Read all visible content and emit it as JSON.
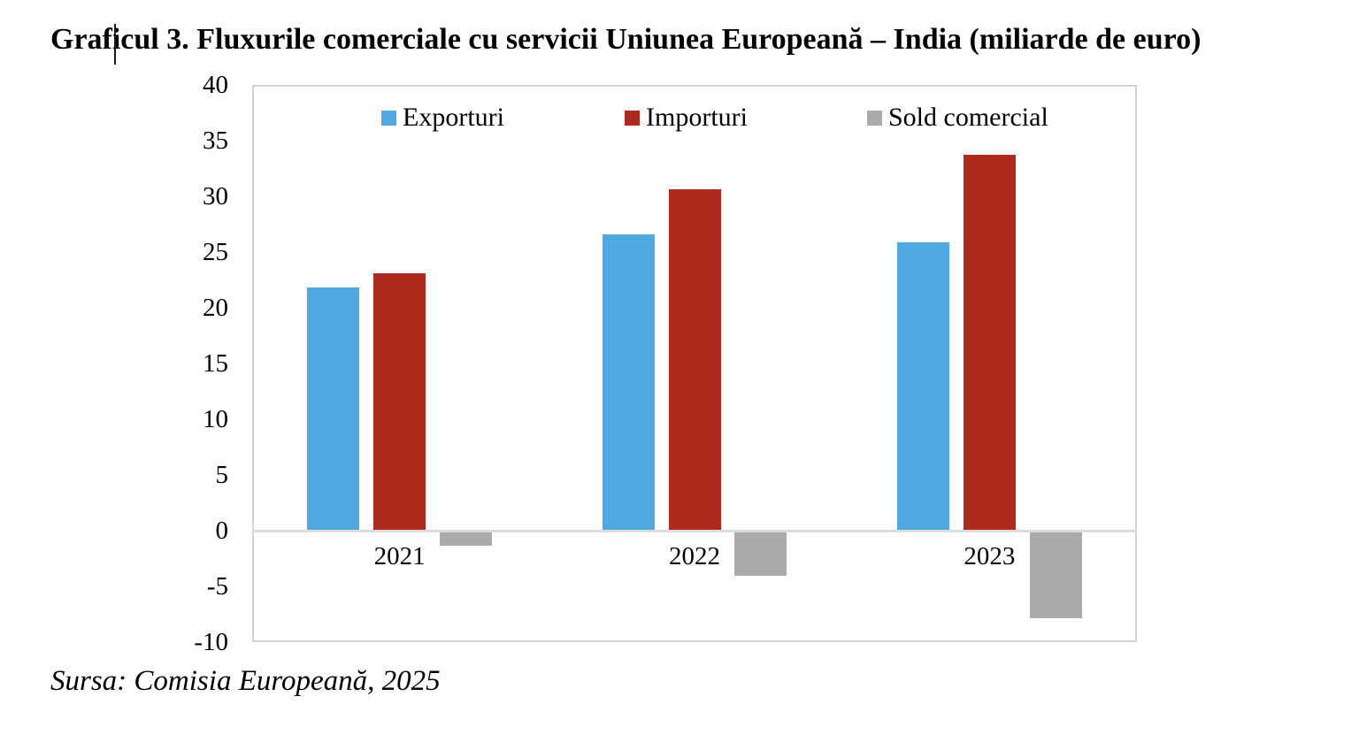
{
  "page": {
    "title": "Graficul 3. Fluxurile comerciale cu servicii Uniunea Europeană – India (miliarde de euro)",
    "source": "Sursa: Comisia Europeană, 2025"
  },
  "chart_data": {
    "type": "bar",
    "title": "Graficul 3. Fluxurile comerciale cu servicii Uniunea Europeană – India (miliarde de euro)",
    "units": "miliarde de euro",
    "categories": [
      "2021",
      "2022",
      "2023"
    ],
    "series": [
      {
        "name": "Exporturi",
        "color": "#50A9E1",
        "values": [
          21.8,
          26.6,
          25.9
        ]
      },
      {
        "name": "Importuri",
        "color": "#AE2A1C",
        "values": [
          23.1,
          30.6,
          33.7
        ]
      },
      {
        "name": "Sold comercial",
        "color": "#ABABAB",
        "values": [
          -1.3,
          -4.0,
          -7.8
        ]
      }
    ],
    "xlabel": "",
    "ylabel": "",
    "ylim": [
      -10,
      40
    ],
    "yticks": [
      40,
      35,
      30,
      25,
      20,
      15,
      10,
      5,
      0,
      -5,
      -10
    ],
    "grid": false,
    "legend_position": "top-inside",
    "source": "Sursa: Comisia Europeană, 2025"
  },
  "colors": {
    "exports": "#50A9E1",
    "imports": "#AE2A1C",
    "balance": "#ABABAB",
    "plot_border": "#D3D3D3",
    "zero_line": "#DCDCDC",
    "text": "#000000",
    "background": "#FFFFFF"
  }
}
